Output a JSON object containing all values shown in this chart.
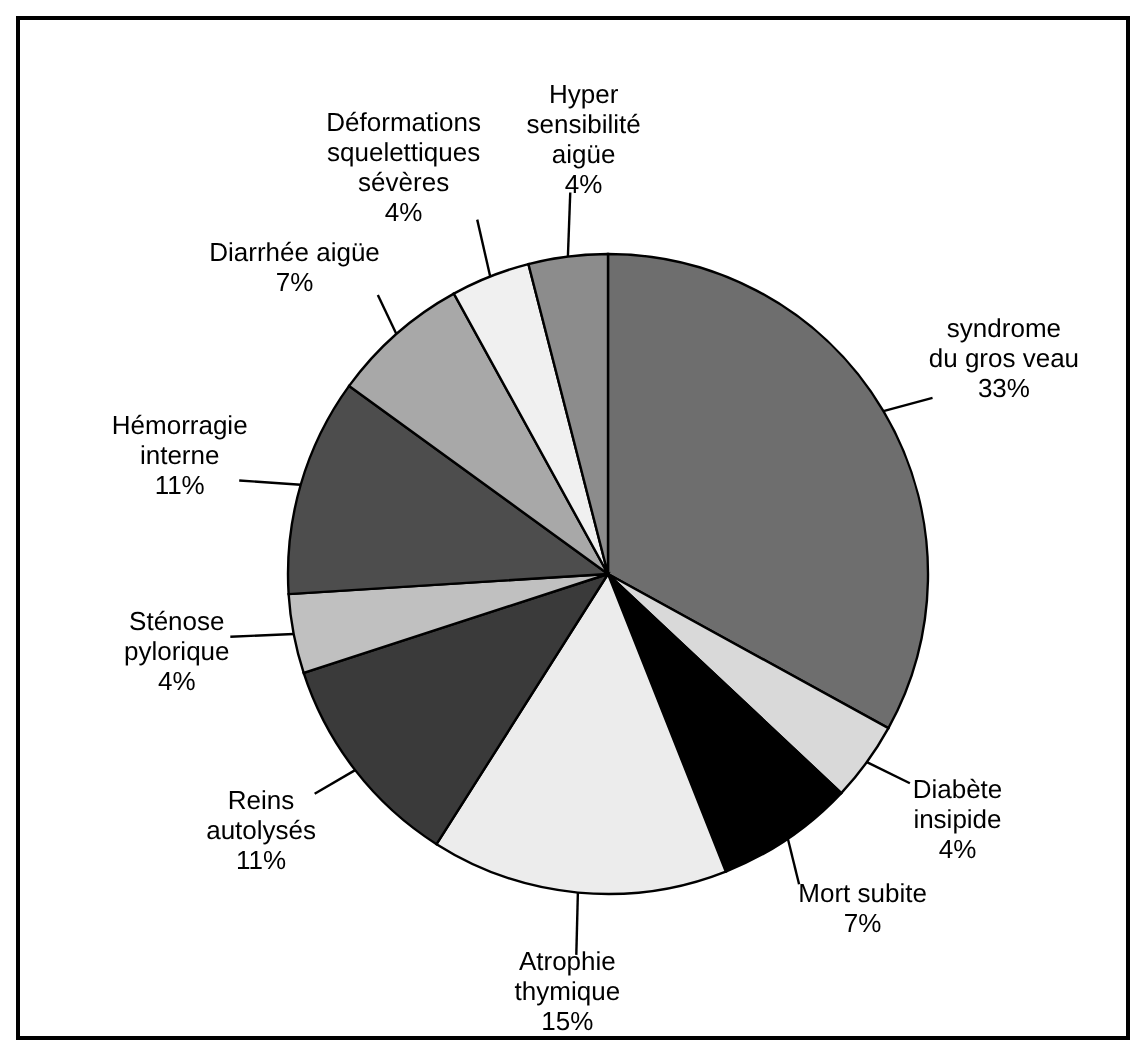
{
  "chart_data": {
    "type": "pie",
    "categories": [
      "syndrome\ndu gros veau",
      "Diabète\ninsipide",
      "Mort subite",
      "Atrophie\nthymique",
      "Reins\nautolysés",
      "Sténose\npylorique",
      "Hémorragie\ninterne",
      "Diarrhée aigüe",
      "Déformations\nsquelettiques\nsévères",
      "Hyper\nsensibilité\naigüe"
    ],
    "values": [
      33,
      4,
      7,
      15,
      11,
      4,
      11,
      7,
      4,
      4
    ],
    "colors": [
      "#6e6e6e",
      "#d9d9d9",
      "#000000",
      "#ececec",
      "#3a3a3a",
      "#c0c0c0",
      "#4d4d4d",
      "#a8a8a8",
      "#f0f0f0",
      "#8c8c8c"
    ],
    "value_labels": [
      "33%",
      "4%",
      "7%",
      "15%",
      "11%",
      "4%",
      "11%",
      "7%",
      "4%",
      "4%"
    ]
  }
}
